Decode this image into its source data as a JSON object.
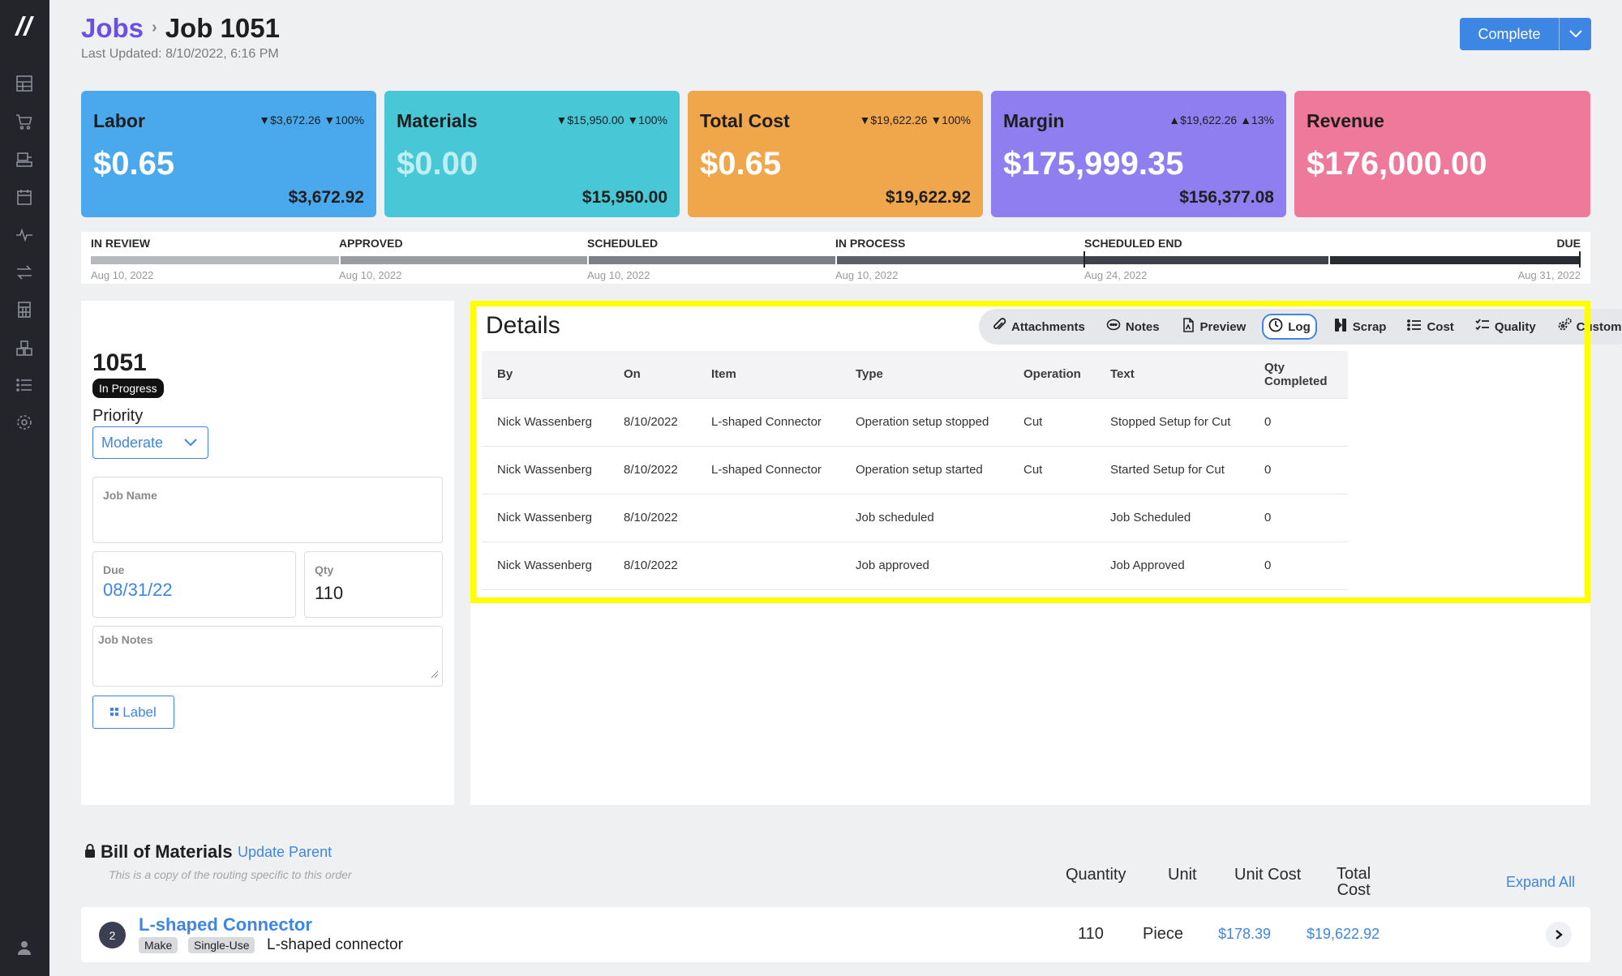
{
  "breadcrumb": {
    "root": "Jobs",
    "current": "Job 1051"
  },
  "last_updated": "Last Updated: 8/10/2022, 6:16 PM",
  "complete_button": {
    "label": "Complete"
  },
  "cards": {
    "labor": {
      "title": "Labor",
      "delta": "▼$3,672.26 ▼100%",
      "value": "$0.65",
      "estimate": "$3,672.92"
    },
    "materials": {
      "title": "Materials",
      "delta": "▼$15,950.00 ▼100%",
      "value": "$0.00",
      "estimate": "$15,950.00"
    },
    "total_cost": {
      "title": "Total Cost",
      "delta": "▼$19,622.26 ▼100%",
      "value": "$0.65",
      "estimate": "$19,622.92"
    },
    "margin": {
      "title": "Margin",
      "delta": "▲$19,622.26 ▲13%",
      "value": "$175,999.35",
      "estimate": "$156,377.08"
    },
    "revenue": {
      "title": "Revenue",
      "value": "$176,000.00"
    }
  },
  "timeline": {
    "stages": [
      {
        "label": "IN REVIEW",
        "date": "Aug 10, 2022"
      },
      {
        "label": "APPROVED",
        "date": "Aug 10, 2022"
      },
      {
        "label": "SCHEDULED",
        "date": "Aug 10, 2022"
      },
      {
        "label": "IN PROCESS",
        "date": "Aug 10, 2022"
      },
      {
        "label": "SCHEDULED END",
        "date": "Aug 24, 2022"
      },
      {
        "label": "DUE",
        "date": "Aug 31, 2022"
      }
    ]
  },
  "job": {
    "number": "1051",
    "status": "In Progress",
    "priority_label": "Priority",
    "priority_value": "Moderate",
    "job_name_label": "Job Name",
    "job_name_value": "",
    "due_label": "Due",
    "due_value": "08/31/22",
    "qty_label": "Qty",
    "qty_value": "110",
    "notes_label": "Job Notes",
    "label_button": "Label"
  },
  "details": {
    "title": "Details",
    "tabs": [
      {
        "label": "Attachments",
        "icon": "paperclip-icon"
      },
      {
        "label": "Notes",
        "icon": "chat-icon"
      },
      {
        "label": "Preview",
        "icon": "pdf-file-icon"
      },
      {
        "label": "Log",
        "icon": "clock-icon"
      },
      {
        "label": "Scrap",
        "icon": "scrap-icon"
      },
      {
        "label": "Cost",
        "icon": "list-icon"
      },
      {
        "label": "Quality",
        "icon": "checklist-icon"
      },
      {
        "label": "Custom",
        "icon": "gears-icon"
      }
    ],
    "active_tab": "Log",
    "columns": [
      "By",
      "On",
      "Item",
      "Type",
      "Operation",
      "Text",
      "Qty Completed"
    ],
    "rows": [
      [
        "Nick Wassenberg",
        "8/10/2022",
        "L-shaped Connector",
        "Operation setup stopped",
        "Cut",
        "Stopped Setup for Cut",
        "0"
      ],
      [
        "Nick Wassenberg",
        "8/10/2022",
        "L-shaped Connector",
        "Operation setup started",
        "Cut",
        "Started Setup for Cut",
        "0"
      ],
      [
        "Nick Wassenberg",
        "8/10/2022",
        "",
        "Job scheduled",
        "",
        "Job Scheduled",
        "0"
      ],
      [
        "Nick Wassenberg",
        "8/10/2022",
        "",
        "Job approved",
        "",
        "Job Approved",
        "0"
      ]
    ]
  },
  "bom": {
    "title": "Bill of Materials",
    "update_parent": "Update Parent",
    "subtitle": "This is a copy of the routing specific to this order",
    "col_quantity": "Quantity",
    "col_unit": "Unit",
    "col_unit_cost": "Unit Cost",
    "col_total_cost_1": "Total",
    "col_total_cost_2": "Cost",
    "expand_all": "Expand All",
    "item": {
      "index": "2",
      "name": "L-shaped Connector",
      "tag1": "Make",
      "tag2": "Single-Use",
      "description": "L-shaped connector",
      "quantity": "110",
      "unit": "Piece",
      "unit_cost": "$178.39",
      "total_cost": "$19,622.92"
    }
  },
  "colors": {
    "accent": "#3d86e3",
    "labor": "#4aa8ec",
    "materials": "#48c7d6",
    "total_cost": "#f0a64b",
    "margin": "#8f7ef0",
    "revenue": "#ee799b",
    "highlight": "#ffff00"
  }
}
